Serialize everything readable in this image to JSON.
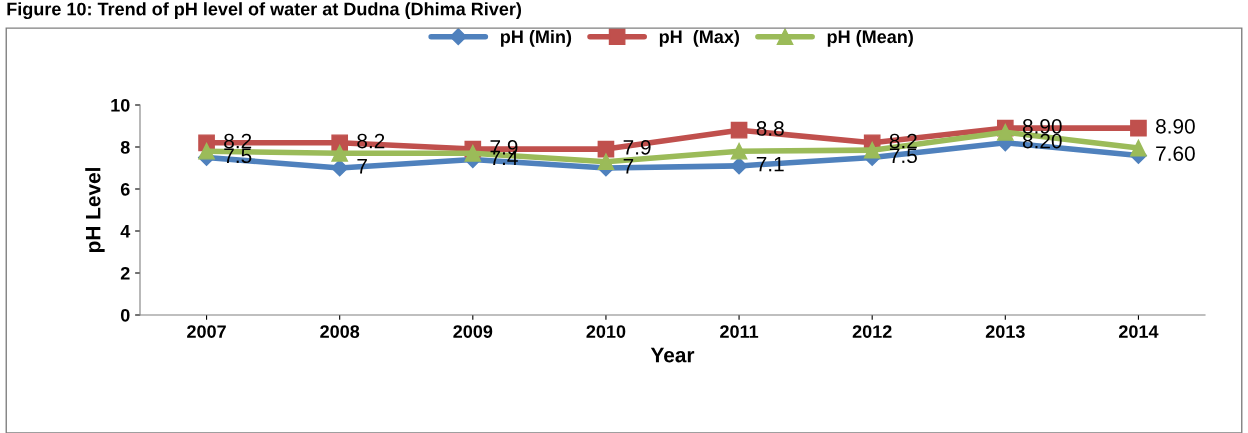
{
  "chart_data": {
    "type": "line",
    "title": "Figure 10: Trend of pH level of water at Dudna (Dhima River)",
    "xlabel": "Year",
    "ylabel": "pH Level",
    "categories": [
      "2007",
      "2008",
      "2009",
      "2010",
      "2011",
      "2012",
      "2013",
      "2014"
    ],
    "series": [
      {
        "name": "pH (Min)",
        "color": "#4f81bd",
        "marker": "diamond",
        "values": [
          7.5,
          7,
          7.4,
          7,
          7.1,
          7.5,
          8.2,
          7.6
        ],
        "value_labels": [
          "7.5",
          "7",
          "7.4",
          "7",
          "7.1",
          "7.5",
          "8.20",
          "7.60"
        ]
      },
      {
        "name": "pH  (Max)",
        "color": "#c0504d",
        "marker": "square",
        "values": [
          8.2,
          8.2,
          7.9,
          7.9,
          8.8,
          8.2,
          8.9,
          8.9
        ],
        "value_labels": [
          "8.2",
          "8.2",
          "7.9",
          "7.9",
          "8.8",
          "8.2",
          "8.90",
          "8.90"
        ]
      },
      {
        "name": "pH (Mean)",
        "color": "#9bbb59",
        "marker": "triangle",
        "values": [
          7.8,
          7.7,
          7.7,
          7.3,
          7.8,
          7.85,
          8.7,
          7.95
        ]
      }
    ],
    "ylim": [
      0,
      10
    ],
    "yticks": [
      0,
      2,
      4,
      6,
      8,
      10
    ],
    "grid": false,
    "legend": "top",
    "line_style": "solid"
  }
}
